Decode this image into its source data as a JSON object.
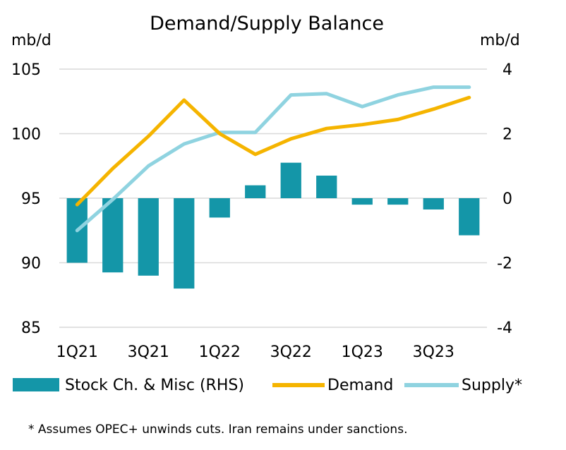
{
  "chart_data": {
    "type": "bar+line",
    "title": "Demand/Supply Balance",
    "y_left_unit": "mb/d",
    "y_right_unit": "mb/d",
    "y_left_lim": [
      85,
      105
    ],
    "y_left_ticks": [
      "105",
      "100",
      "95",
      "90",
      "85"
    ],
    "y_right_lim": [
      -4,
      4
    ],
    "y_right_ticks": [
      "4",
      "2",
      "0",
      "-2",
      "-4"
    ],
    "grid": true,
    "categories": [
      "1Q21",
      "2Q21",
      "3Q21",
      "4Q21",
      "1Q22",
      "2Q22",
      "3Q22",
      "4Q22",
      "1Q23",
      "2Q23",
      "3Q23",
      "4Q23"
    ],
    "x_tick_labels": [
      {
        "index": 0,
        "label": "1Q21"
      },
      {
        "index": 2,
        "label": "3Q21"
      },
      {
        "index": 4,
        "label": "1Q22"
      },
      {
        "index": 6,
        "label": "3Q22"
      },
      {
        "index": 8,
        "label": "1Q23"
      },
      {
        "index": 10,
        "label": "3Q23"
      }
    ],
    "series": [
      {
        "name": "Stock Ch. & Misc (RHS)",
        "kind": "bar",
        "axis": "right",
        "color": "#1496a8",
        "values": [
          -2.0,
          -2.3,
          -2.4,
          -2.8,
          -0.6,
          0.4,
          1.1,
          0.7,
          -0.2,
          -0.2,
          -0.35,
          -1.15
        ]
      },
      {
        "name": "Demand",
        "kind": "line",
        "axis": "left",
        "color": "#f5b400",
        "values": [
          94.5,
          97.3,
          99.8,
          102.6,
          100.0,
          98.4,
          99.6,
          100.4,
          100.7,
          101.1,
          101.9,
          102.8
        ]
      },
      {
        "name": "Supply*",
        "kind": "line",
        "axis": "left",
        "color": "#8fd3e0",
        "values": [
          92.5,
          94.9,
          97.5,
          99.2,
          100.1,
          100.1,
          103.0,
          103.1,
          102.1,
          103.0,
          103.6,
          103.6
        ]
      }
    ],
    "legend_position": "bottom",
    "footnote": "* Assumes OPEC+ unwinds cuts. Iran remains under sanctions."
  }
}
